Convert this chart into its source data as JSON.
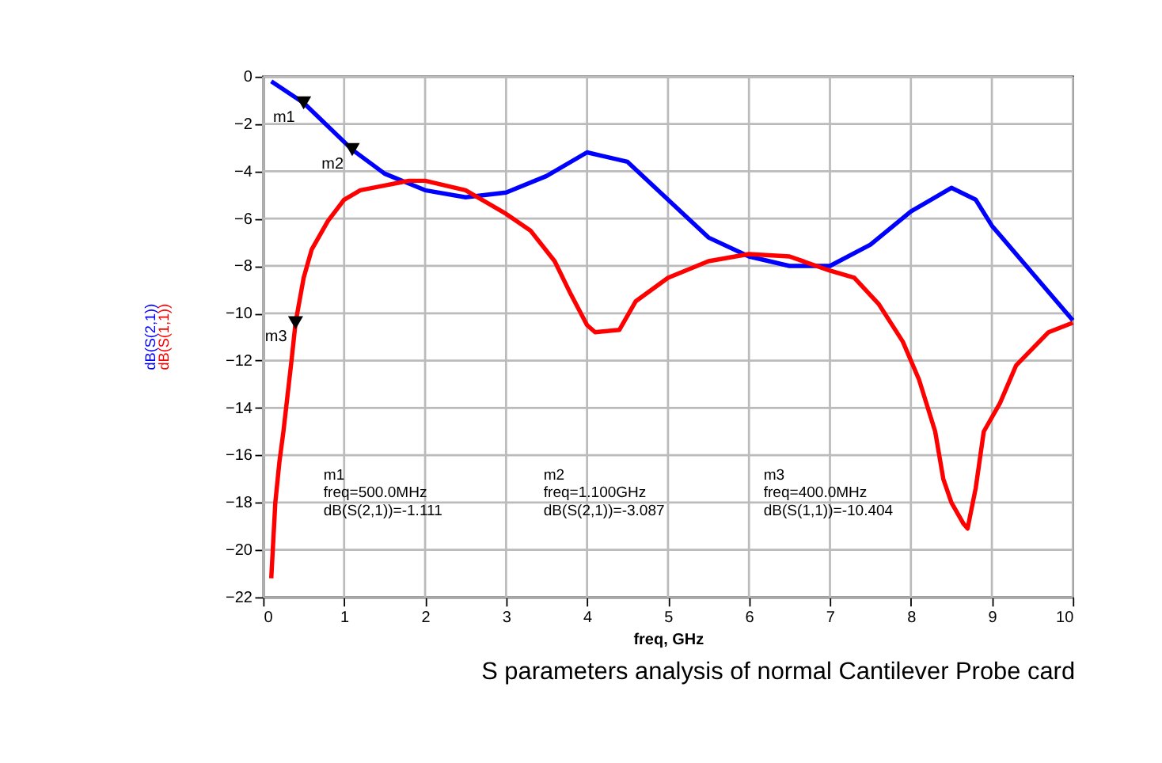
{
  "chart_data": {
    "type": "line",
    "title": "S parameters analysis of normal Cantilever Probe card",
    "xlabel": "freq, GHz",
    "xlim": [
      0,
      10
    ],
    "xticks": [
      0,
      1,
      2,
      3,
      4,
      5,
      6,
      7,
      8,
      9,
      10
    ],
    "ylim": [
      -22,
      0
    ],
    "yticks": [
      -22,
      -20,
      -18,
      -16,
      -14,
      -12,
      -10,
      -8,
      -6,
      -4,
      -2,
      0
    ],
    "grid": true,
    "marker": "none",
    "line_style": "solid",
    "series": [
      {
        "name": "dB(S(2,1))",
        "color": "#0000ff",
        "x": [
          0.1,
          0.5,
          1.1,
          1.5,
          2,
          2.5,
          3,
          3.5,
          4,
          4.5,
          5,
          5.5,
          6,
          6.5,
          7,
          7.5,
          8,
          8.5,
          8.8,
          9,
          9.5,
          10
        ],
        "values": [
          -0.2,
          -1.111,
          -3.087,
          -4.1,
          -4.8,
          -5.1,
          -4.9,
          -4.2,
          -3.2,
          -3.6,
          -5.2,
          -6.8,
          -7.6,
          -8.0,
          -8.0,
          -7.1,
          -5.7,
          -4.7,
          -5.2,
          -6.3,
          -8.3,
          -10.3
        ]
      },
      {
        "name": "dB(S(1,1))",
        "color": "#ff0000",
        "x": [
          0.1,
          0.15,
          0.2,
          0.25,
          0.3,
          0.35,
          0.4,
          0.5,
          0.6,
          0.8,
          1.0,
          1.2,
          1.5,
          1.8,
          2,
          2.5,
          3,
          3.3,
          3.6,
          3.8,
          4,
          4.1,
          4.4,
          4.6,
          5,
          5.5,
          6,
          6.5,
          7,
          7.3,
          7.6,
          7.9,
          8.1,
          8.3,
          8.4,
          8.5,
          8.65,
          8.7,
          8.8,
          8.9,
          9.1,
          9.3,
          9.5,
          9.7,
          10
        ],
        "values": [
          -21.2,
          -18,
          -16.3,
          -15,
          -13.5,
          -12,
          -10.4,
          -8.5,
          -7.3,
          -6.1,
          -5.2,
          -4.8,
          -4.6,
          -4.4,
          -4.4,
          -4.8,
          -5.8,
          -6.5,
          -7.8,
          -9.2,
          -10.5,
          -10.8,
          -10.7,
          -9.5,
          -8.5,
          -7.8,
          -7.5,
          -7.6,
          -8.2,
          -8.5,
          -9.6,
          -11.2,
          -12.8,
          -15,
          -17,
          -18,
          -18.9,
          -19.1,
          -17.4,
          -15,
          -13.8,
          -12.2,
          -11.5,
          -10.8,
          -10.4
        ]
      }
    ],
    "annotations": [
      {
        "text": "m1",
        "x": 0.5,
        "y": -1.111
      },
      {
        "text": "m2",
        "x": 1.1,
        "y": -3.087
      },
      {
        "text": "m3",
        "x": 0.4,
        "y": -10.4
      },
      "m1\nfreq=500.0MHz\ndB(S(2,1))=-1.111",
      "m2\nfreq=1.100GHz\ndB(S(2,1))=-3.087",
      "m3\nfreq=400.0MHz\ndB(S(1,1))=-10.404"
    ]
  }
}
